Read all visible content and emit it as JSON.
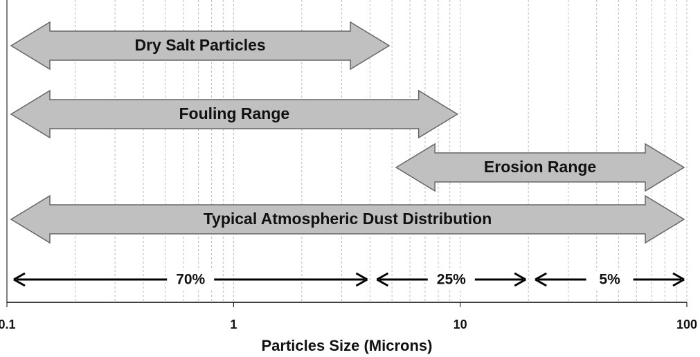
{
  "chart_data": {
    "type": "range",
    "xlabel": "Particles Size (Microns)",
    "log_x": true,
    "xlim": [
      0.1,
      100
    ],
    "xticks": [
      0.1,
      1,
      10,
      100
    ],
    "xticks_minor": [
      0.2,
      0.3,
      0.4,
      0.5,
      0.6,
      0.7,
      0.8,
      0.9,
      2,
      3,
      4,
      5,
      6,
      7,
      8,
      9,
      20,
      30,
      40,
      50,
      60,
      70,
      80,
      90
    ],
    "grid": true,
    "color": "#c0c0c0",
    "ranges": [
      {
        "label": "Dry Salt Particles",
        "start": 0.1,
        "end": 5
      },
      {
        "label": "Fouling Range",
        "start": 0.1,
        "end": 10
      },
      {
        "label": "Erosion Range",
        "start": 5,
        "end": 100
      },
      {
        "label": "Typical Atmospheric Dust Distribution",
        "start": 0.1,
        "end": 100
      }
    ],
    "shares": [
      {
        "value": 70,
        "label": "70%",
        "start": 0.1,
        "end": 4
      },
      {
        "value": 25,
        "label": "25%",
        "start": 4,
        "end": 20
      },
      {
        "value": 5,
        "label": "5%",
        "start": 20,
        "end": 100
      }
    ]
  }
}
